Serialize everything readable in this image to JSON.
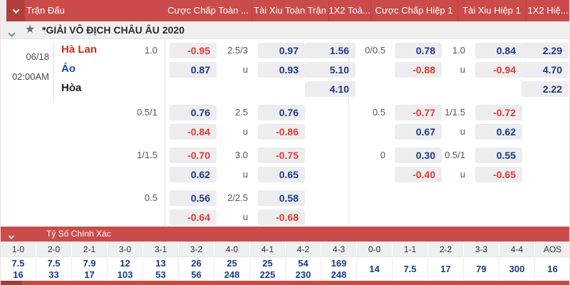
{
  "colors": {
    "bar_red": "#cb4b4b",
    "bar_red_dark": "#b23c3c",
    "odds_navy": "#1a3a85",
    "odds_negative_red": "#e03a30",
    "home_red": "#d02a1e",
    "away_blue": "#1549a8"
  },
  "header": {
    "columns": [
      "Trận Đấu",
      "Cược Chấp Toàn ...",
      "Tài Xiu Toàn Trận",
      "1X2 Toà...",
      "Cược Chấp Hiệp 1",
      "Tài Xiu Hiệp 1",
      "1X2 Hiệ..."
    ]
  },
  "league": {
    "title": "*GIẢI VÔ ĐỊCH CHÂU ÂU 2020",
    "star_icon": "★"
  },
  "match": {
    "date": "06/18",
    "time": "02:00AM",
    "home": "Hà Lan",
    "away": "Áo",
    "draw": "Hòa"
  },
  "odds_rows": [
    {
      "team": "Hà Lan",
      "team_role": "home",
      "cells": [
        "1.0",
        "-0.95",
        "2.5/3",
        "0.97",
        "1.56",
        "0/0.5",
        "0.78",
        "1.0",
        "0.84",
        "2.29"
      ]
    },
    {
      "team": "Áo",
      "team_role": "away",
      "cells": [
        "",
        "0.87",
        "u",
        "0.93",
        "5.10",
        "",
        "-0.88",
        "u",
        "-0.94",
        "4.70"
      ]
    },
    {
      "team": "Hòa",
      "team_role": "draw",
      "cells": [
        "",
        "",
        "",
        "",
        "4.10",
        "",
        "",
        "",
        "",
        "2.22"
      ]
    },
    {
      "block_start": true,
      "cells": [
        "0.5/1",
        "0.76",
        "2.5",
        "0.76",
        "",
        "0.5",
        "-0.77",
        "1/1.5",
        "-0.72",
        ""
      ]
    },
    {
      "cells": [
        "",
        "-0.84",
        "u",
        "-0.86",
        "",
        "",
        "0.67",
        "u",
        "0.62",
        ""
      ]
    },
    {
      "block_start": true,
      "cells": [
        "1/1.5",
        "-0.70",
        "3.0",
        "-0.75",
        "",
        "0",
        "0.30",
        "0.5/1",
        "0.55",
        ""
      ]
    },
    {
      "cells": [
        "",
        "0.62",
        "u",
        "0.65",
        "",
        "",
        "-0.40",
        "u",
        "-0.65",
        ""
      ]
    },
    {
      "block_start": true,
      "cells": [
        "0.5",
        "0.56",
        "2/2.5",
        "0.58",
        "",
        "",
        "",
        "",
        "",
        ""
      ]
    },
    {
      "cells": [
        "",
        "-0.64",
        "u",
        "-0.68",
        "",
        "",
        "",
        "",
        "",
        ""
      ]
    }
  ],
  "correct_score": {
    "title": "Tỷ Số Chính Xác",
    "columns": [
      "1-0",
      "2-0",
      "2-1",
      "3-0",
      "3-1",
      "3-2",
      "4-0",
      "4-1",
      "4-2",
      "4-3",
      "0-0",
      "1-1",
      "2-2",
      "3-3",
      "4-4",
      "AOS"
    ],
    "row_top": [
      "7.5",
      "7.5",
      "7.9",
      "12",
      "13",
      "26",
      "25",
      "25",
      "54",
      "169",
      "14",
      "7.5",
      "17",
      "79",
      "300",
      "16"
    ],
    "row_bottom": [
      "16",
      "33",
      "17",
      "103",
      "53",
      "56",
      "248",
      "225",
      "230",
      "248",
      "",
      "",
      "",
      "",
      "",
      ""
    ]
  }
}
